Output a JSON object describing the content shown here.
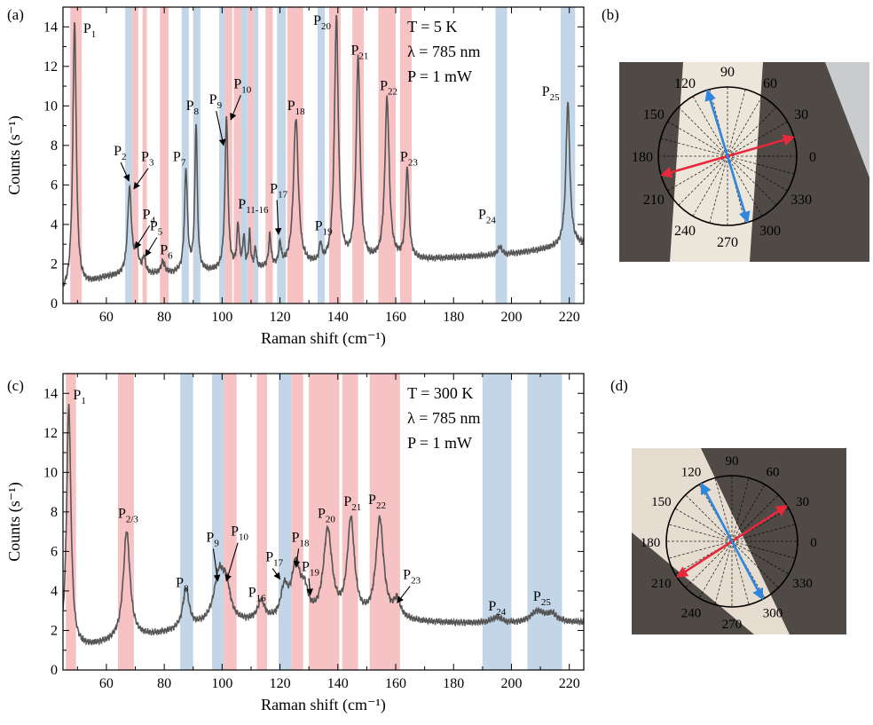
{
  "figure": {
    "panel_labels": [
      "(a)",
      "(b)",
      "(c)",
      "(d)"
    ]
  },
  "colors": {
    "peak_pink": "#f4b7b9",
    "peak_blue": "#b9cfe4",
    "spectrum_line": "#555555",
    "arrow_red": "#e8283c",
    "arrow_blue": "#2e86de",
    "photo_bg": "#4f4a45",
    "photo_sample": "#ece6da"
  },
  "chart_data": [
    {
      "panel": "(a)",
      "type": "line",
      "xlabel": "Raman shift (cm⁻¹)",
      "ylabel": "Counts (s⁻¹)",
      "xlim": [
        45,
        225
      ],
      "ylim": [
        0,
        15
      ],
      "xticks": [
        60,
        80,
        100,
        120,
        140,
        160,
        180,
        200,
        220
      ],
      "yticks": [
        0,
        2,
        4,
        6,
        8,
        10,
        12,
        14
      ],
      "conditions": [
        "T = 5 K",
        "λ = 785 nm",
        "P = 1 mW"
      ],
      "baseline": [
        [
          45,
          0.5
        ],
        [
          60,
          1.3
        ],
        [
          100,
          1.6
        ],
        [
          160,
          2.1
        ],
        [
          200,
          2.5
        ],
        [
          225,
          3.0
        ]
      ],
      "peaks": [
        {
          "x": 49.0,
          "h": 13.6,
          "w": 0.7
        },
        {
          "x": 68.0,
          "h": 4.4,
          "w": 0.8
        },
        {
          "x": 70.5,
          "h": 1.2,
          "w": 0.8
        },
        {
          "x": 73.0,
          "h": 0.8,
          "w": 0.6
        },
        {
          "x": 79.5,
          "h": 0.6,
          "w": 0.8
        },
        {
          "x": 87.5,
          "h": 5.2,
          "w": 0.6
        },
        {
          "x": 91.0,
          "h": 7.5,
          "w": 0.5
        },
        {
          "x": 101.5,
          "h": 7.8,
          "w": 0.6
        },
        {
          "x": 105.5,
          "h": 2.2,
          "w": 0.5
        },
        {
          "x": 107.5,
          "h": 1.6,
          "w": 0.4
        },
        {
          "x": 109.5,
          "h": 1.8,
          "w": 0.4
        },
        {
          "x": 111.5,
          "h": 1.0,
          "w": 0.4
        },
        {
          "x": 116.5,
          "h": 1.6,
          "w": 0.5
        },
        {
          "x": 120.0,
          "h": 1.1,
          "w": 0.5
        },
        {
          "x": 125.5,
          "h": 7.5,
          "w": 1.0
        },
        {
          "x": 134.0,
          "h": 0.9,
          "w": 0.5
        },
        {
          "x": 139.5,
          "h": 12.5,
          "w": 0.8
        },
        {
          "x": 147.0,
          "h": 10.4,
          "w": 0.8
        },
        {
          "x": 157.0,
          "h": 8.2,
          "w": 0.9
        },
        {
          "x": 164.0,
          "h": 4.6,
          "w": 0.7
        },
        {
          "x": 196.0,
          "h": 0.4,
          "w": 0.8
        },
        {
          "x": 219.5,
          "h": 7.3,
          "w": 0.8
        }
      ],
      "bands": [
        {
          "x0": 47.5,
          "x1": 51.5,
          "color": "pink"
        },
        {
          "x0": 66.5,
          "x1": 69.0,
          "color": "blue"
        },
        {
          "x0": 69.0,
          "x1": 71.0,
          "color": "pink"
        },
        {
          "x0": 72.5,
          "x1": 74.0,
          "color": "pink"
        },
        {
          "x0": 78.5,
          "x1": 81.5,
          "color": "pink"
        },
        {
          "x0": 86.0,
          "x1": 88.5,
          "color": "blue"
        },
        {
          "x0": 90.0,
          "x1": 92.5,
          "color": "blue"
        },
        {
          "x0": 99.0,
          "x1": 101.0,
          "color": "blue"
        },
        {
          "x0": 101.0,
          "x1": 103.5,
          "color": "pink"
        },
        {
          "x0": 104.0,
          "x1": 106.5,
          "color": "pink"
        },
        {
          "x0": 106.5,
          "x1": 109.0,
          "color": "blue"
        },
        {
          "x0": 109.0,
          "x1": 111.0,
          "color": "pink"
        },
        {
          "x0": 111.0,
          "x1": 112.5,
          "color": "blue"
        },
        {
          "x0": 115.0,
          "x1": 117.5,
          "color": "pink"
        },
        {
          "x0": 119.0,
          "x1": 122.0,
          "color": "blue"
        },
        {
          "x0": 122.5,
          "x1": 128.0,
          "color": "pink"
        },
        {
          "x0": 133.0,
          "x1": 135.5,
          "color": "blue"
        },
        {
          "x0": 137.0,
          "x1": 141.0,
          "color": "pink"
        },
        {
          "x0": 145.0,
          "x1": 149.0,
          "color": "pink"
        },
        {
          "x0": 154.0,
          "x1": 160.0,
          "color": "pink"
        },
        {
          "x0": 161.5,
          "x1": 165.5,
          "color": "pink"
        },
        {
          "x0": 194.5,
          "x1": 198.5,
          "color": "blue"
        },
        {
          "x0": 217.0,
          "x1": 222.0,
          "color": "blue"
        }
      ],
      "peak_labels": [
        {
          "id": "P1",
          "base": "P",
          "sub": "1",
          "x": 52.0,
          "y": 13.7
        },
        {
          "id": "P2",
          "base": "P",
          "sub": "2",
          "x": 62.5,
          "y": 7.5,
          "arrow_to": [
            67.8,
            6.2
          ]
        },
        {
          "id": "P3",
          "base": "P",
          "sub": "3",
          "x": 72.0,
          "y": 7.2,
          "arrow_to": [
            69.5,
            5.8
          ]
        },
        {
          "id": "P4",
          "base": "P",
          "sub": "4",
          "x": 72.5,
          "y": 4.3,
          "arrow_to": [
            70.0,
            2.8
          ]
        },
        {
          "id": "P5",
          "base": "P",
          "sub": "5",
          "x": 75.0,
          "y": 3.7,
          "arrow_to": [
            73.5,
            2.4
          ]
        },
        {
          "id": "P6",
          "base": "P",
          "sub": "6",
          "x": 78.5,
          "y": 2.5
        },
        {
          "id": "P7",
          "base": "P",
          "sub": "7",
          "x": 83.0,
          "y": 7.2
        },
        {
          "id": "P8",
          "base": "P",
          "sub": "8",
          "x": 87.5,
          "y": 9.8
        },
        {
          "id": "P9",
          "base": "P",
          "sub": "9",
          "x": 95.5,
          "y": 10.1,
          "arrow_to": [
            100.5,
            8.0
          ]
        },
        {
          "id": "P10",
          "base": "P",
          "sub": "10",
          "x": 104.0,
          "y": 10.9,
          "arrow_to": [
            103.0,
            9.3
          ]
        },
        {
          "id": "P11-16",
          "base": "P",
          "sub": "11-16",
          "x": 105.5,
          "y": 4.8
        },
        {
          "id": "P17",
          "base": "P",
          "sub": "17",
          "x": 116.5,
          "y": 5.6,
          "arrow_to": [
            119.5,
            3.5
          ]
        },
        {
          "id": "P18",
          "base": "P",
          "sub": "18",
          "x": 122.5,
          "y": 9.8
        },
        {
          "id": "P19",
          "base": "P",
          "sub": "19",
          "x": 132.0,
          "y": 3.7
        },
        {
          "id": "P20",
          "base": "P",
          "sub": "20",
          "x": 131.5,
          "y": 14.1
        },
        {
          "id": "P21",
          "base": "P",
          "sub": "21",
          "x": 144.5,
          "y": 12.6
        },
        {
          "id": "P22",
          "base": "P",
          "sub": "22",
          "x": 154.5,
          "y": 10.8
        },
        {
          "id": "P23",
          "base": "P",
          "sub": "23",
          "x": 161.5,
          "y": 7.2
        },
        {
          "id": "P24",
          "base": "P",
          "sub": "24",
          "x": 188.5,
          "y": 4.3
        },
        {
          "id": "P25",
          "base": "P",
          "sub": "25",
          "x": 210.5,
          "y": 10.5
        }
      ]
    },
    {
      "panel": "(c)",
      "type": "line",
      "xlabel": "Raman shift (cm⁻¹)",
      "ylabel": "Counts (s⁻¹)",
      "xlim": [
        45,
        225
      ],
      "ylim": [
        0,
        15
      ],
      "xticks": [
        60,
        80,
        100,
        120,
        140,
        160,
        180,
        200,
        220
      ],
      "yticks": [
        0,
        2,
        4,
        6,
        8,
        10,
        12,
        14
      ],
      "conditions": [
        "T = 300 K",
        "λ = 785 nm",
        "P = 1 mW"
      ],
      "baseline": [
        [
          45,
          0.9
        ],
        [
          60,
          1.3
        ],
        [
          100,
          2.3
        ],
        [
          160,
          2.4
        ],
        [
          200,
          2.3
        ],
        [
          225,
          2.4
        ]
      ],
      "peaks": [
        {
          "x": 47.0,
          "h": 12.5,
          "w": 0.9
        },
        {
          "x": 67.0,
          "h": 5.5,
          "w": 1.4
        },
        {
          "x": 87.5,
          "h": 2.0,
          "w": 1.3
        },
        {
          "x": 99.0,
          "h": 2.5,
          "w": 2.2
        },
        {
          "x": 101.5,
          "h": 1.4,
          "w": 1.5
        },
        {
          "x": 113.5,
          "h": 1.0,
          "w": 1.5
        },
        {
          "x": 121.5,
          "h": 1.5,
          "w": 1.5
        },
        {
          "x": 125.5,
          "h": 2.7,
          "w": 1.8
        },
        {
          "x": 128.5,
          "h": 1.2,
          "w": 1.5
        },
        {
          "x": 136.5,
          "h": 4.5,
          "w": 1.8
        },
        {
          "x": 144.5,
          "h": 5.0,
          "w": 1.5
        },
        {
          "x": 154.5,
          "h": 5.1,
          "w": 1.6
        },
        {
          "x": 160.5,
          "h": 0.9,
          "w": 1.5
        },
        {
          "x": 195.0,
          "h": 0.3,
          "w": 2.5
        },
        {
          "x": 209.0,
          "h": 0.6,
          "w": 3.0
        },
        {
          "x": 214.0,
          "h": 0.4,
          "w": 2.0
        }
      ],
      "bands": [
        {
          "x0": 46.0,
          "x1": 49.5,
          "color": "pink"
        },
        {
          "x0": 64.0,
          "x1": 69.5,
          "color": "pink"
        },
        {
          "x0": 85.5,
          "x1": 90.0,
          "color": "blue"
        },
        {
          "x0": 96.5,
          "x1": 100.5,
          "color": "blue"
        },
        {
          "x0": 100.5,
          "x1": 105.0,
          "color": "pink"
        },
        {
          "x0": 112.0,
          "x1": 115.5,
          "color": "pink"
        },
        {
          "x0": 119.5,
          "x1": 124.0,
          "color": "blue"
        },
        {
          "x0": 124.0,
          "x1": 128.0,
          "color": "pink"
        },
        {
          "x0": 130.0,
          "x1": 140.5,
          "color": "pink"
        },
        {
          "x0": 141.5,
          "x1": 147.0,
          "color": "pink"
        },
        {
          "x0": 151.0,
          "x1": 161.5,
          "color": "pink"
        },
        {
          "x0": 190.0,
          "x1": 200.0,
          "color": "blue"
        },
        {
          "x0": 205.5,
          "x1": 217.5,
          "color": "blue"
        }
      ],
      "peak_labels": [
        {
          "id": "P1",
          "base": "P",
          "sub": "1",
          "x": 48.5,
          "y": 13.7
        },
        {
          "id": "P2/3",
          "base": "P",
          "sub": "2/3",
          "x": 64.0,
          "y": 7.7
        },
        {
          "id": "P8",
          "base": "P",
          "sub": "8",
          "x": 84.0,
          "y": 4.2
        },
        {
          "id": "P9",
          "base": "P",
          "sub": "9",
          "x": 94.5,
          "y": 6.5,
          "arrow_to": [
            98.5,
            4.5
          ]
        },
        {
          "id": "P10",
          "base": "P",
          "sub": "10",
          "x": 103.0,
          "y": 6.8,
          "arrow_to": [
            101.5,
            4.5
          ]
        },
        {
          "id": "P16",
          "base": "P",
          "sub": "16",
          "x": 109.0,
          "y": 3.7
        },
        {
          "id": "P17",
          "base": "P",
          "sub": "17",
          "x": 115.0,
          "y": 5.5,
          "arrow_to": [
            120.0,
            4.6
          ]
        },
        {
          "id": "P18",
          "base": "P",
          "sub": "18",
          "x": 124.0,
          "y": 6.5,
          "arrow_to": [
            125.5,
            5.2
          ]
        },
        {
          "id": "P19",
          "base": "P",
          "sub": "19",
          "x": 127.5,
          "y": 5.0,
          "arrow_to": [
            130.5,
            3.8
          ]
        },
        {
          "id": "P20",
          "base": "P",
          "sub": "20",
          "x": 133.0,
          "y": 7.7
        },
        {
          "id": "P21",
          "base": "P",
          "sub": "21",
          "x": 142.0,
          "y": 8.3
        },
        {
          "id": "P22",
          "base": "P",
          "sub": "22",
          "x": 150.5,
          "y": 8.4
        },
        {
          "id": "P23",
          "base": "P",
          "sub": "23",
          "x": 162.5,
          "y": 4.6,
          "arrow_to": [
            160.5,
            3.4
          ]
        },
        {
          "id": "P24",
          "base": "P",
          "sub": "24",
          "x": 192.0,
          "y": 3.0
        },
        {
          "id": "P25",
          "base": "P",
          "sub": "25",
          "x": 207.5,
          "y": 3.5
        }
      ]
    },
    {
      "panel": "(b)",
      "type": "polar",
      "angle_labels": [
        "0",
        "30",
        "60",
        "90",
        "120",
        "150",
        "180",
        "210",
        "240",
        "270",
        "300",
        "330"
      ],
      "arrows": [
        {
          "color": "red",
          "angle_deg": 16
        },
        {
          "color": "blue",
          "angle_deg": 107
        }
      ]
    },
    {
      "panel": "(d)",
      "type": "polar",
      "angle_labels": [
        "0",
        "30",
        "60",
        "90",
        "120",
        "150",
        "180",
        "210",
        "240",
        "270",
        "300",
        "330"
      ],
      "arrows": [
        {
          "color": "red",
          "angle_deg": 33
        },
        {
          "color": "blue",
          "angle_deg": 118
        }
      ]
    }
  ]
}
